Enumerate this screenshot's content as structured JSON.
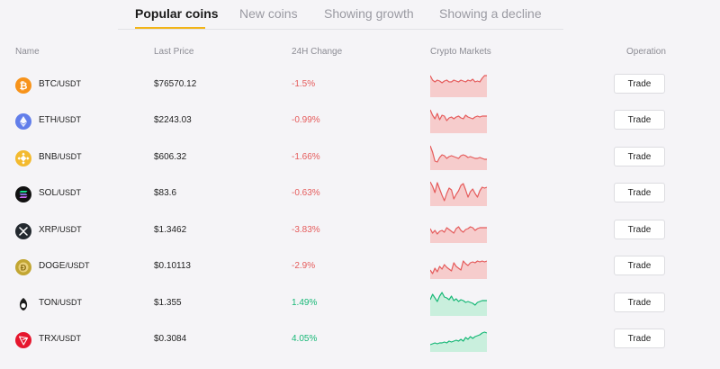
{
  "tabs": [
    {
      "label": "Popular coins",
      "active": true
    },
    {
      "label": "New coins",
      "active": false
    },
    {
      "label": "Showing growth",
      "active": false
    },
    {
      "label": "Showing a decline",
      "active": false
    }
  ],
  "columns": {
    "name": "Name",
    "last_price": "Last Price",
    "change": "24H Change",
    "markets": "Crypto Markets",
    "operation": "Operation"
  },
  "colors": {
    "negative": "#e55b5b",
    "positive": "#18b877",
    "accent": "#f2b418"
  },
  "coins": [
    {
      "base": "BTC",
      "quote": "/USDT",
      "price": "$76570.12",
      "change": "-1.5%",
      "trend": "down",
      "icon": "bitcoin-icon",
      "trade": "Trade",
      "spark": [
        6,
        11,
        13,
        11,
        12,
        14,
        12,
        11,
        13,
        13,
        11,
        12,
        13,
        11,
        12,
        13,
        11,
        12,
        10,
        13,
        12,
        13,
        9,
        6,
        6
      ]
    },
    {
      "base": "ETH",
      "quote": "/USDT",
      "price": "$2243.03",
      "change": "-0.99%",
      "trend": "down",
      "icon": "ethereum-icon",
      "trade": "Trade",
      "spark": [
        4,
        10,
        14,
        8,
        15,
        10,
        11,
        16,
        13,
        12,
        14,
        12,
        11,
        13,
        14,
        10,
        12,
        13,
        14,
        12,
        11,
        12,
        11,
        11,
        11
      ]
    },
    {
      "base": "BNB",
      "quote": "/USDT",
      "price": "$606.32",
      "change": "-1.66%",
      "trend": "down",
      "icon": "bnb-icon",
      "trade": "Trade",
      "spark": [
        3,
        10,
        20,
        21,
        16,
        13,
        14,
        17,
        15,
        14,
        15,
        16,
        17,
        14,
        13,
        14,
        16,
        15,
        16,
        17,
        17,
        16,
        17,
        18,
        18
      ]
    },
    {
      "base": "SOL",
      "quote": "/USDT",
      "price": "$83.6",
      "change": "-0.63%",
      "trend": "down",
      "icon": "solana-icon",
      "trade": "Trade",
      "spark": [
        3,
        8,
        15,
        4,
        11,
        18,
        24,
        16,
        10,
        12,
        22,
        17,
        13,
        7,
        5,
        12,
        20,
        14,
        11,
        16,
        20,
        13,
        9,
        10,
        9
      ]
    },
    {
      "base": "XRP",
      "quote": "/USDT",
      "price": "$1.3462",
      "change": "-3.83%",
      "trend": "down",
      "icon": "xrp-icon",
      "trade": "Trade",
      "spark": [
        14,
        19,
        16,
        20,
        17,
        16,
        18,
        13,
        15,
        17,
        19,
        14,
        12,
        16,
        18,
        15,
        14,
        12,
        13,
        16,
        14,
        13,
        13,
        13,
        13
      ]
    },
    {
      "base": "DOGE",
      "quote": "/USDT",
      "price": "$0.10113",
      "change": "-2.9%",
      "trend": "down",
      "icon": "dogecoin-icon",
      "trade": "Trade",
      "spark": [
        20,
        24,
        18,
        22,
        16,
        19,
        14,
        17,
        19,
        21,
        12,
        16,
        18,
        20,
        10,
        13,
        15,
        12,
        11,
        12,
        10,
        11,
        10,
        11,
        10
      ]
    },
    {
      "base": "TON",
      "quote": "/USDT",
      "price": "$1.355",
      "change": "1.49%",
      "trend": "up",
      "icon": "toncoin-icon",
      "trade": "Trade",
      "spark": [
        12,
        6,
        10,
        14,
        8,
        4,
        9,
        10,
        12,
        8,
        13,
        11,
        14,
        12,
        13,
        15,
        14,
        15,
        16,
        18,
        15,
        14,
        13,
        13,
        13
      ]
    },
    {
      "base": "TRX",
      "quote": "/USDT",
      "price": "$0.3084",
      "change": "4.05%",
      "trend": "up",
      "icon": "tron-icon",
      "trade": "Trade",
      "spark": [
        22,
        21,
        20,
        21,
        20,
        20,
        19,
        20,
        18,
        19,
        18,
        17,
        18,
        16,
        18,
        14,
        16,
        13,
        15,
        13,
        12,
        11,
        9,
        8,
        9
      ]
    }
  ]
}
